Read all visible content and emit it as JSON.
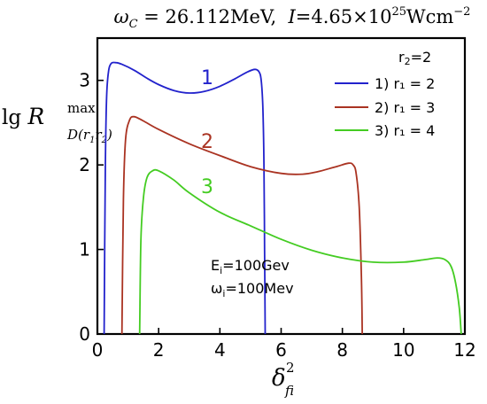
{
  "chart_data": {
    "type": "line",
    "title_parts": {
      "omega_symbol": "ω",
      "omega_sub": "C",
      "omega_value": " = 26.112MeV,  ",
      "intensity_symbol": "I",
      "intensity_value_pre": "=4.65×10",
      "intensity_exp": "25",
      "intensity_unit_pre": "Wcm",
      "intensity_unit_exp": "−2"
    },
    "xlabel": {
      "symbol": "δ",
      "sup": "2",
      "sub": "fi"
    },
    "ylabel": {
      "lg": "lg ",
      "symbol": "R",
      "sup": "max",
      "sub": "D(r",
      "sub_r1": "1",
      "sub_r": "r",
      "sub_r2": "2",
      "sub_close": ")"
    },
    "xlim": [
      0,
      12
    ],
    "ylim": [
      0,
      3.5
    ],
    "xticks": [
      0,
      2,
      4,
      6,
      8,
      10,
      12
    ],
    "yticks": [
      0,
      1,
      2,
      3
    ],
    "grid": false,
    "legend": {
      "placement": "top-right",
      "title": "r",
      "title_sub": "2",
      "title_value": "=2",
      "entries": [
        "1) r₁ = 2",
        "2) r₁ = 3",
        "3) r₁ = 4"
      ]
    },
    "annotations": {
      "energy": "E",
      "energy_sub": "i",
      "energy_value": "=100Gev",
      "omega": "ω",
      "omega_sub": "i",
      "omega_value": "=100Mev"
    },
    "series": [
      {
        "label": "1",
        "color": "#2222cc",
        "points": [
          [
            0.22,
            0
          ],
          [
            0.26,
            2.0
          ],
          [
            0.3,
            2.8
          ],
          [
            0.36,
            3.1
          ],
          [
            0.45,
            3.2
          ],
          [
            0.6,
            3.21
          ],
          [
            0.8,
            3.19
          ],
          [
            1.2,
            3.12
          ],
          [
            1.6,
            3.03
          ],
          [
            2.0,
            2.95
          ],
          [
            2.5,
            2.88
          ],
          [
            3.0,
            2.85
          ],
          [
            3.5,
            2.87
          ],
          [
            4.0,
            2.93
          ],
          [
            4.5,
            3.02
          ],
          [
            4.9,
            3.1
          ],
          [
            5.15,
            3.13
          ],
          [
            5.28,
            3.1
          ],
          [
            5.35,
            3.0
          ],
          [
            5.4,
            2.7
          ],
          [
            5.44,
            2.0
          ],
          [
            5.46,
            1.0
          ],
          [
            5.48,
            0
          ]
        ]
      },
      {
        "label": "2",
        "color": "#aa3322",
        "points": [
          [
            0.8,
            0
          ],
          [
            0.85,
            1.6
          ],
          [
            0.92,
            2.3
          ],
          [
            1.05,
            2.53
          ],
          [
            1.2,
            2.57
          ],
          [
            1.5,
            2.52
          ],
          [
            2.0,
            2.42
          ],
          [
            3.0,
            2.25
          ],
          [
            4.0,
            2.11
          ],
          [
            5.0,
            1.98
          ],
          [
            6.0,
            1.9
          ],
          [
            6.7,
            1.89
          ],
          [
            7.2,
            1.92
          ],
          [
            7.8,
            1.98
          ],
          [
            8.2,
            2.02
          ],
          [
            8.35,
            2.0
          ],
          [
            8.45,
            1.9
          ],
          [
            8.55,
            1.5
          ],
          [
            8.62,
            0.7
          ],
          [
            8.65,
            0
          ]
        ]
      },
      {
        "label": "3",
        "color": "#44cc22",
        "points": [
          [
            1.38,
            0
          ],
          [
            1.42,
            1.1
          ],
          [
            1.5,
            1.6
          ],
          [
            1.62,
            1.85
          ],
          [
            1.8,
            1.93
          ],
          [
            2.0,
            1.93
          ],
          [
            2.5,
            1.82
          ],
          [
            3.0,
            1.67
          ],
          [
            4.0,
            1.44
          ],
          [
            5.0,
            1.28
          ],
          [
            6.0,
            1.12
          ],
          [
            7.0,
            0.99
          ],
          [
            8.0,
            0.9
          ],
          [
            9.0,
            0.85
          ],
          [
            10.0,
            0.85
          ],
          [
            10.7,
            0.88
          ],
          [
            11.1,
            0.9
          ],
          [
            11.35,
            0.88
          ],
          [
            11.55,
            0.8
          ],
          [
            11.7,
            0.6
          ],
          [
            11.82,
            0.3
          ],
          [
            11.88,
            0
          ]
        ]
      }
    ]
  }
}
